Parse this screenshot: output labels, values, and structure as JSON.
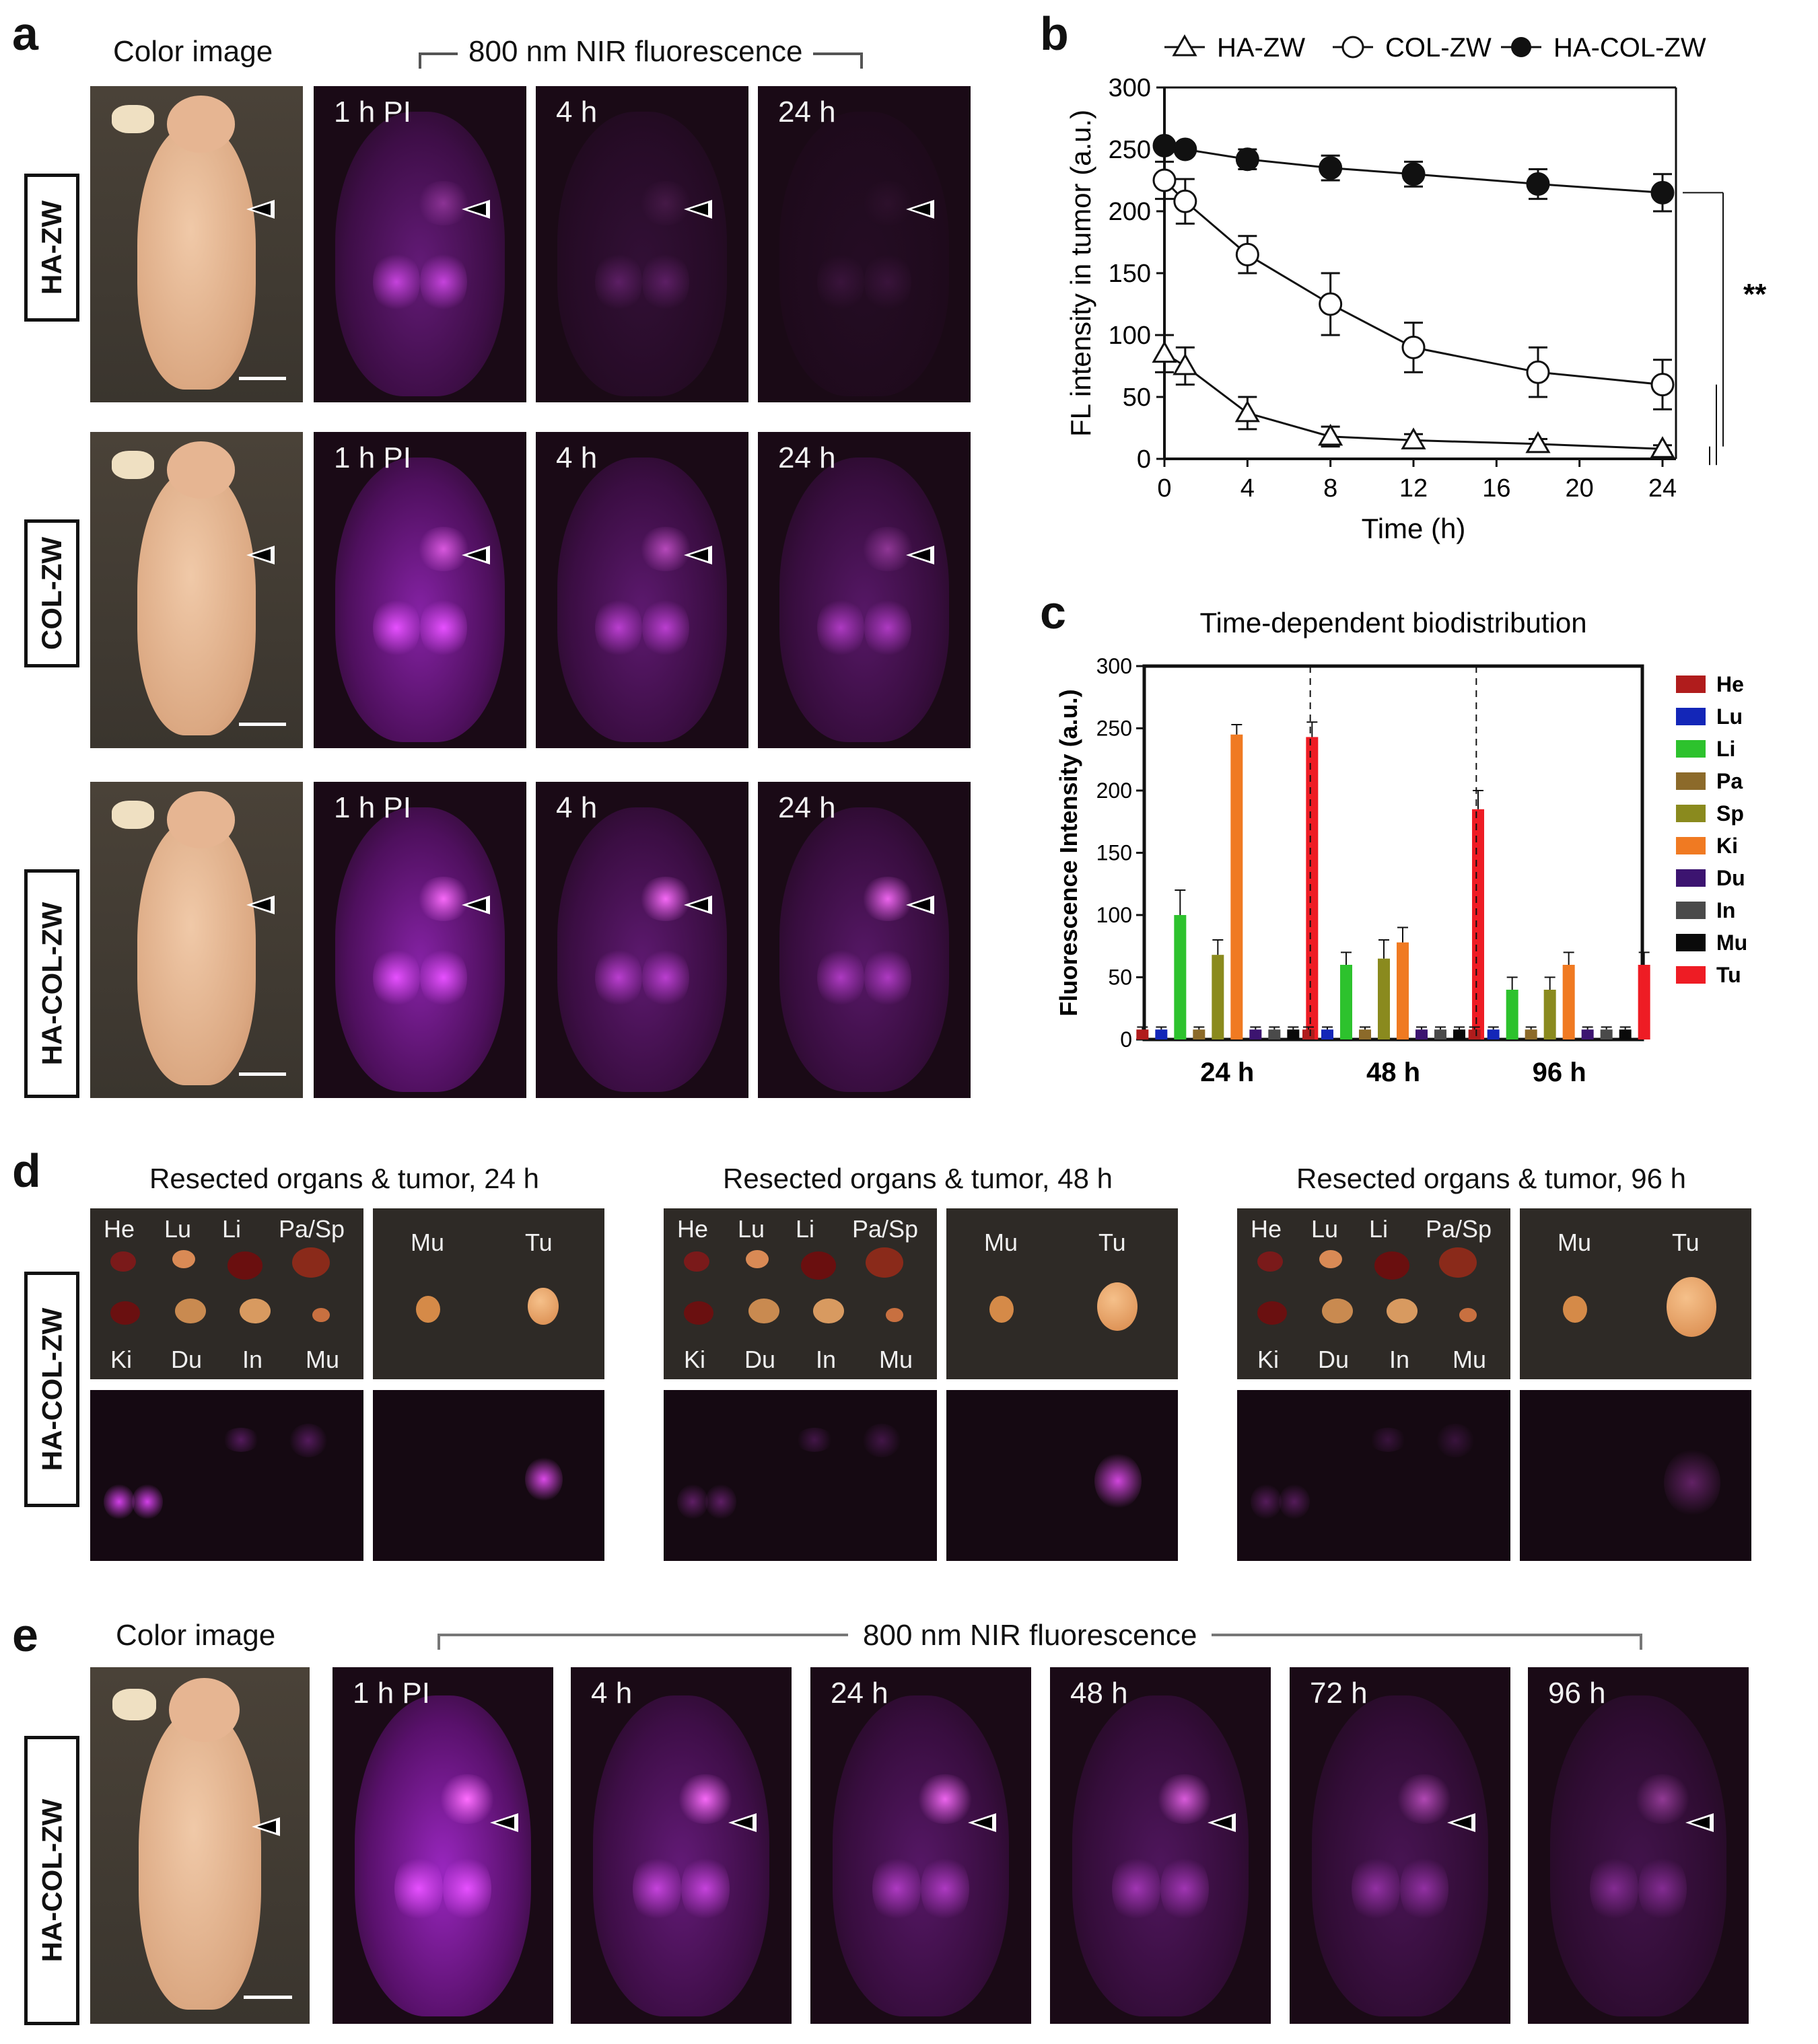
{
  "panel_letters": {
    "a": "a",
    "b": "b",
    "c": "c",
    "d": "d",
    "e": "e"
  },
  "panel_a": {
    "color_header": "Color image",
    "nir_header": "800 nm NIR fluorescence",
    "rows": [
      {
        "label": "HA-ZW",
        "times": [
          "1 h PI",
          "4 h",
          "24 h"
        ],
        "tumor_signal": [
          0.35,
          0.12,
          0.05
        ]
      },
      {
        "label": "COL-ZW",
        "times": [
          "1 h PI",
          "4 h",
          "24 h"
        ],
        "tumor_signal": [
          0.75,
          0.6,
          0.4
        ]
      },
      {
        "label": "HA-COL-ZW",
        "times": [
          "1 h PI",
          "4 h",
          "24 h"
        ],
        "tumor_signal": [
          0.95,
          0.95,
          0.9
        ]
      }
    ]
  },
  "chart_data": [
    {
      "type": "line",
      "panel": "b",
      "xlabel": "Time (h)",
      "ylabel": "FL intensity in tumor (a.u.)",
      "xlim": [
        0,
        24
      ],
      "ylim": [
        0,
        300
      ],
      "xticks": [
        0,
        4,
        8,
        12,
        16,
        20,
        24
      ],
      "yticks": [
        0,
        50,
        100,
        150,
        200,
        250,
        300
      ],
      "legend_position": "top",
      "significance": "**",
      "series": [
        {
          "name": "HA-ZW",
          "marker": "open-triangle",
          "x": [
            0,
            1,
            4,
            8,
            12,
            18,
            24
          ],
          "y": [
            85,
            75,
            37,
            18,
            15,
            12,
            8
          ],
          "err": [
            15,
            15,
            13,
            8,
            5,
            4,
            3
          ]
        },
        {
          "name": "COL-ZW",
          "marker": "open-circle",
          "x": [
            0,
            1,
            4,
            8,
            12,
            18,
            24
          ],
          "y": [
            225,
            208,
            165,
            125,
            90,
            70,
            60
          ],
          "err": [
            15,
            18,
            15,
            25,
            20,
            20,
            20
          ]
        },
        {
          "name": "HA-COL-ZW",
          "marker": "filled-circle",
          "x": [
            0,
            1,
            4,
            8,
            12,
            18,
            24
          ],
          "y": [
            253,
            250,
            242,
            235,
            230,
            222,
            215
          ],
          "err": [
            5,
            5,
            8,
            10,
            10,
            12,
            15
          ]
        }
      ]
    },
    {
      "type": "bar",
      "panel": "c",
      "title": "Time-dependent biodistribution",
      "ylabel": "Fluorescence Intensity (a.u.)",
      "ylim": [
        0,
        300
      ],
      "yticks": [
        0,
        50,
        100,
        150,
        200,
        250,
        300
      ],
      "categories": [
        "24 h",
        "48 h",
        "96 h"
      ],
      "legend_position": "right",
      "series": [
        {
          "name": "He",
          "color": "#b01c1c",
          "values": [
            8,
            8,
            8
          ],
          "err": [
            2,
            2,
            2
          ]
        },
        {
          "name": "Lu",
          "color": "#1326b8",
          "values": [
            8,
            8,
            8
          ],
          "err": [
            2,
            2,
            2
          ]
        },
        {
          "name": "Li",
          "color": "#2dc22d",
          "values": [
            100,
            60,
            40
          ],
          "err": [
            20,
            10,
            10
          ]
        },
        {
          "name": "Pa",
          "color": "#8c6a2a",
          "values": [
            8,
            8,
            8
          ],
          "err": [
            2,
            2,
            2
          ]
        },
        {
          "name": "Sp",
          "color": "#8a8a1e",
          "values": [
            68,
            65,
            40
          ],
          "err": [
            12,
            15,
            10
          ]
        },
        {
          "name": "Ki",
          "color": "#f07a22",
          "values": [
            245,
            78,
            60
          ],
          "err": [
            8,
            12,
            10
          ]
        },
        {
          "name": "Du",
          "color": "#3c1470",
          "values": [
            8,
            8,
            8
          ],
          "err": [
            2,
            2,
            2
          ]
        },
        {
          "name": "In",
          "color": "#4a4a4a",
          "values": [
            8,
            8,
            8
          ],
          "err": [
            2,
            2,
            2
          ]
        },
        {
          "name": "Mu",
          "color": "#0a0a0a",
          "values": [
            8,
            8,
            8
          ],
          "err": [
            2,
            2,
            2
          ]
        },
        {
          "name": "Tu",
          "color": "#ee1c24",
          "values": [
            243,
            185,
            60
          ],
          "err": [
            12,
            15,
            10
          ]
        }
      ]
    }
  ],
  "panel_d": {
    "row_label": "HA-COL-ZW",
    "groups": [
      {
        "title": "Resected organs & tumor, 24 h",
        "kidney": 0.9,
        "liver": 0.35,
        "tumor": 0.9
      },
      {
        "title": "Resected organs & tumor, 48 h",
        "kidney": 0.35,
        "liver": 0.25,
        "tumor": 0.85
      },
      {
        "title": "Resected organs & tumor, 96 h",
        "kidney": 0.3,
        "liver": 0.2,
        "tumor": 0.35
      }
    ],
    "organ_labels": {
      "he": "He",
      "lu": "Lu",
      "li": "Li",
      "pasp": "Pa/Sp",
      "ki": "Ki",
      "du": "Du",
      "in": "In",
      "mu": "Mu",
      "mu2": "Mu",
      "tu": "Tu"
    }
  },
  "panel_e": {
    "row_label": "HA-COL-ZW",
    "color_header": "Color image",
    "nir_header": "800 nm NIR fluorescence",
    "times": [
      "1 h PI",
      "4 h",
      "24 h",
      "48 h",
      "72 h",
      "96 h"
    ],
    "tumor_signal": [
      1.0,
      0.95,
      0.9,
      0.8,
      0.6,
      0.45
    ]
  }
}
